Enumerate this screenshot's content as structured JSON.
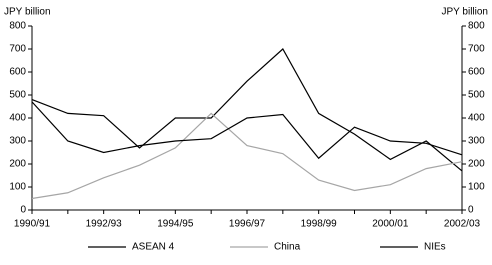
{
  "chart_data": {
    "type": "line",
    "y_label": "JPY billion",
    "y2_label": "JPY billion",
    "categories": [
      "1990/91",
      null,
      "1992/93",
      null,
      "1994/95",
      null,
      "1996/97",
      null,
      "1998/99",
      null,
      "2000/01",
      null,
      "2002/03"
    ],
    "series": [
      {
        "name": "ASEAN 4",
        "color": "#000000",
        "values": [
          480,
          420,
          410,
          270,
          400,
          400,
          560,
          700,
          420,
          330,
          220,
          300,
          170
        ]
      },
      {
        "name": "China",
        "color": "#a6a6a6",
        "values": [
          50,
          75,
          140,
          195,
          270,
          420,
          280,
          245,
          130,
          85,
          110,
          180,
          210
        ]
      },
      {
        "name": "NIEs",
        "color": "#000000",
        "values": [
          470,
          300,
          250,
          280,
          300,
          310,
          400,
          415,
          225,
          360,
          300,
          290,
          240
        ]
      }
    ],
    "ylim": [
      0,
      800
    ],
    "yticks": [
      0,
      100,
      200,
      300,
      400,
      500,
      600,
      700,
      800
    ],
    "y2lim": [
      0,
      800
    ],
    "y2ticks": [
      0,
      100,
      200,
      300,
      400,
      500,
      600,
      700,
      800
    ],
    "grid": false
  }
}
